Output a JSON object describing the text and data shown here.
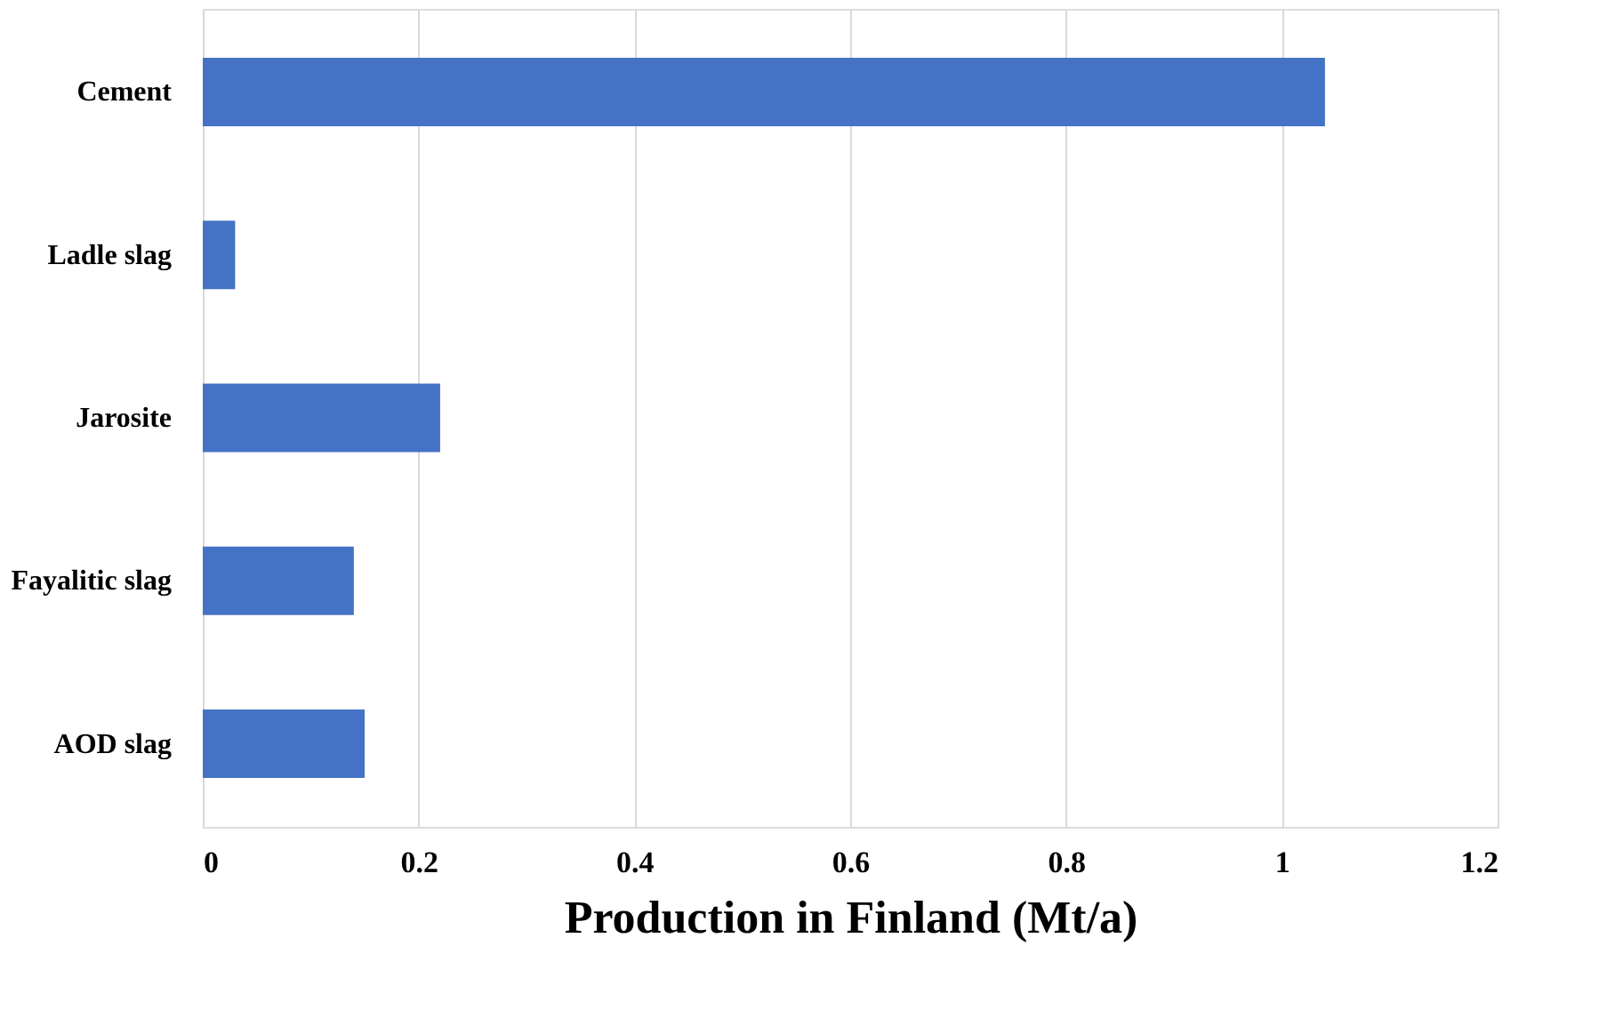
{
  "chart_data": {
    "type": "bar",
    "orientation": "horizontal",
    "xlabel": "Production in Finland (Mt/a)",
    "categories": [
      "Cement",
      "Ladle slag",
      "Jarosite",
      "Fayalitic slag",
      "AOD slag"
    ],
    "values": [
      1.04,
      0.03,
      0.22,
      0.14,
      0.15
    ],
    "color": "#4472c4",
    "xlim": [
      0,
      1.2
    ],
    "xticks": [
      0,
      0.2,
      0.4,
      0.6,
      0.8,
      1,
      1.2
    ],
    "grid": "x"
  }
}
